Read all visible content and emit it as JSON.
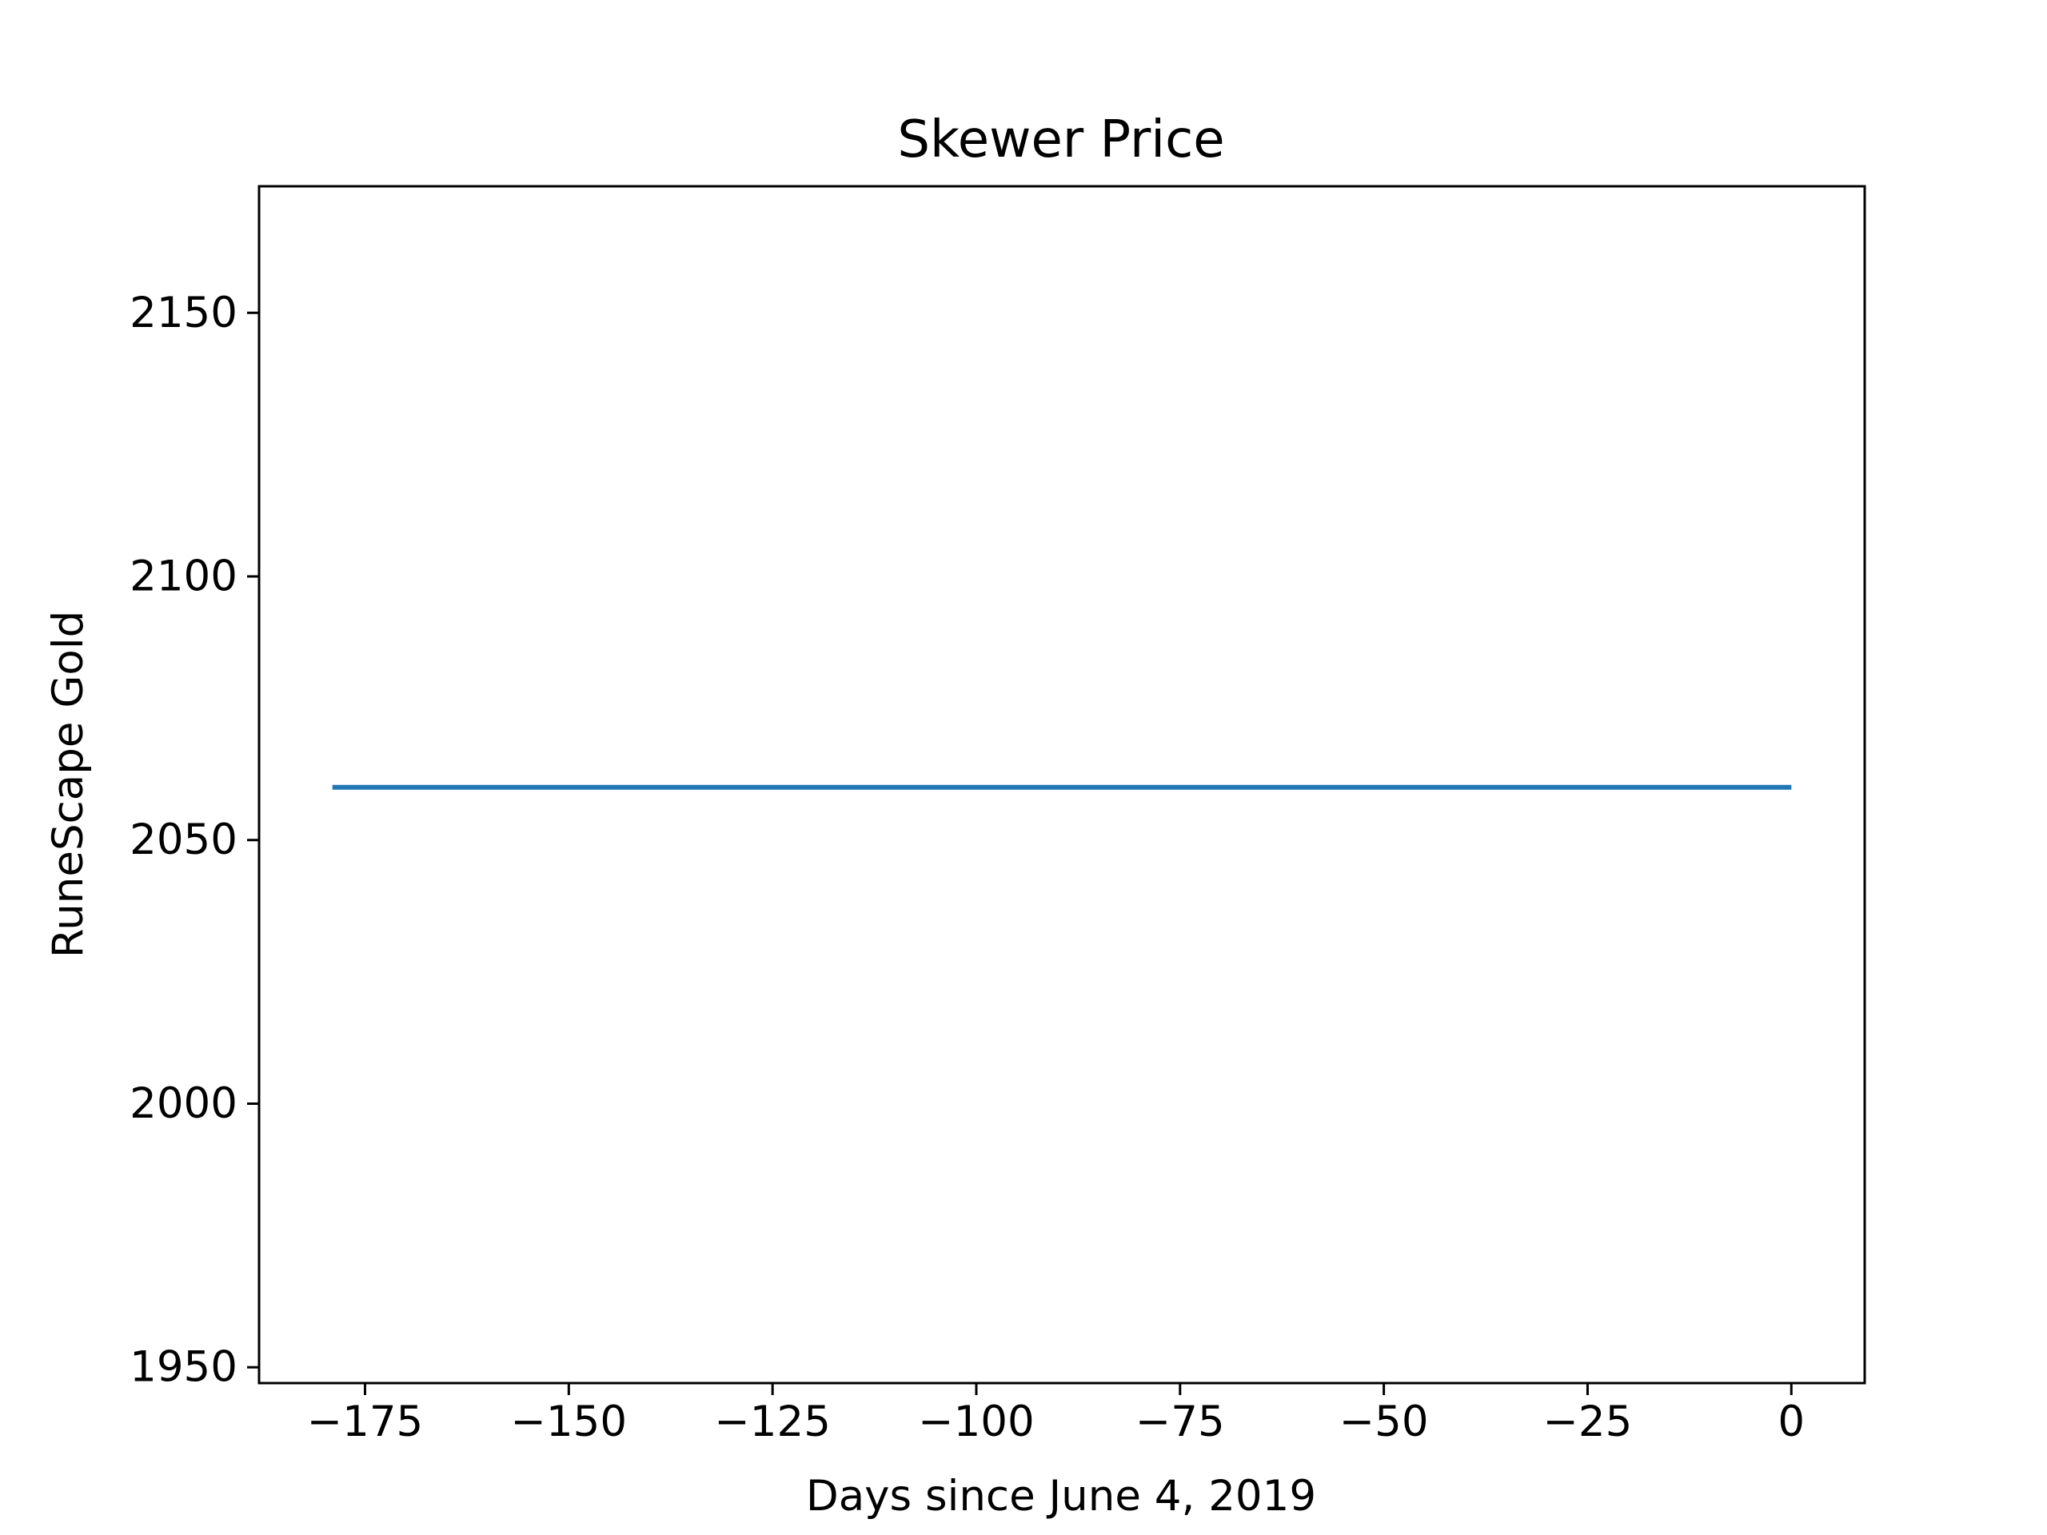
{
  "chart_data": {
    "type": "line",
    "title": "Skewer Price",
    "xlabel": "Days since June 4, 2019",
    "ylabel": "RuneScape Gold",
    "xlim": [
      -188,
      9
    ],
    "ylim": [
      1947,
      2174
    ],
    "xticks": [
      -175,
      -150,
      -125,
      -100,
      -75,
      -50,
      -25,
      0
    ],
    "xtick_labels": [
      "−175",
      "−150",
      "−125",
      "−100",
      "−75",
      "−50",
      "−25",
      "0"
    ],
    "yticks": [
      1950,
      2000,
      2050,
      2100,
      2150
    ],
    "ytick_labels": [
      "1950",
      "2000",
      "2050",
      "2100",
      "2150"
    ],
    "grid": false,
    "series": [
      {
        "color": "#1f77b4",
        "x": [
          -179,
          0
        ],
        "y": [
          2060,
          2060
        ]
      }
    ]
  }
}
